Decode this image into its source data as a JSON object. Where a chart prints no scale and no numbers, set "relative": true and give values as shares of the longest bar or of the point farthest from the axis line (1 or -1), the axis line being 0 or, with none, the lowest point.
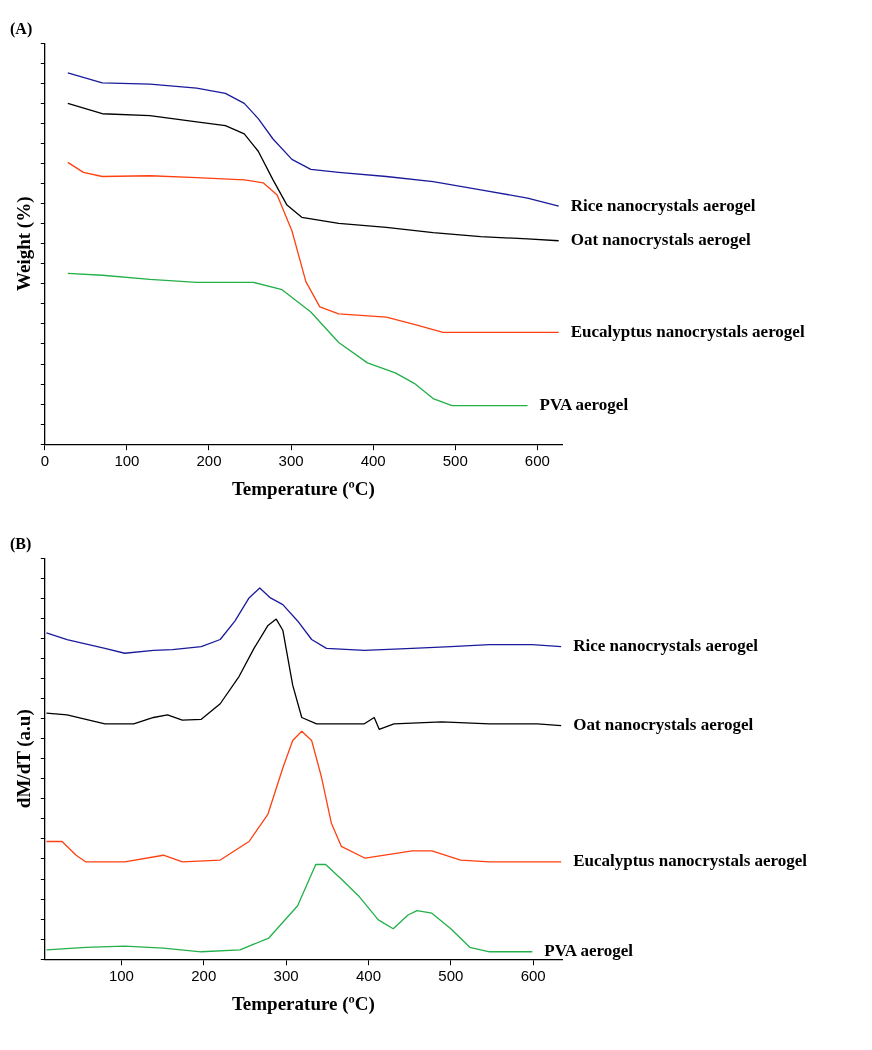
{
  "chart_data": [
    {
      "type": "line",
      "title": "(A)",
      "xlabel": "Temperature (ºC)",
      "ylabel": "Weight (%)",
      "relative": true,
      "xlim": [
        0,
        630
      ],
      "xticks": [
        0,
        100,
        200,
        300,
        400,
        500,
        600
      ],
      "tick_labels": "x",
      "grid": false,
      "legend": false,
      "marker": "none",
      "line_style": "solid",
      "series": [
        {
          "name": "Rice nanocrystals aerogel",
          "color": "#1a1a9c",
          "x": [
            28,
            70,
            128,
            185,
            220,
            243,
            260,
            278,
            301,
            324,
            358,
            416,
            473,
            531,
            588,
            626
          ],
          "values": [
            1.0,
            0.973,
            0.97,
            0.959,
            0.945,
            0.918,
            0.877,
            0.822,
            0.767,
            0.74,
            0.732,
            0.721,
            0.707,
            0.685,
            0.663,
            0.641
          ]
        },
        {
          "name": "Oat nanocrystals aerogel",
          "color": "#000000",
          "x": [
            28,
            70,
            128,
            185,
            220,
            243,
            260,
            278,
            295,
            313,
            358,
            416,
            473,
            531,
            588,
            626
          ],
          "values": [
            0.918,
            0.89,
            0.885,
            0.868,
            0.858,
            0.836,
            0.789,
            0.712,
            0.644,
            0.611,
            0.595,
            0.584,
            0.57,
            0.559,
            0.553,
            0.548
          ]
        },
        {
          "name": "Eucalyptus nanocrystals aerogel",
          "color": "#ff4010",
          "x": [
            28,
            47,
            70,
            128,
            185,
            243,
            266,
            283,
            301,
            318,
            335,
            358,
            416,
            450,
            485,
            531,
            626
          ],
          "values": [
            0.759,
            0.732,
            0.721,
            0.723,
            0.718,
            0.712,
            0.704,
            0.671,
            0.575,
            0.438,
            0.37,
            0.351,
            0.342,
            0.323,
            0.301,
            0.301,
            0.301
          ]
        },
        {
          "name": "PVA aerogel",
          "color": "#22b04a",
          "x": [
            28,
            70,
            128,
            185,
            254,
            289,
            324,
            358,
            393,
            427,
            450,
            473,
            496,
            531,
            588
          ],
          "values": [
            0.46,
            0.455,
            0.444,
            0.436,
            0.436,
            0.416,
            0.356,
            0.274,
            0.219,
            0.192,
            0.164,
            0.123,
            0.104,
            0.104,
            0.104
          ]
        }
      ]
    },
    {
      "type": "line",
      "title": "(B)",
      "xlabel": "Temperature (ºC)",
      "ylabel": "dM/dT (a.u)",
      "relative": true,
      "xlim": [
        7,
        635
      ],
      "xticks": [
        100,
        200,
        300,
        400,
        500,
        600
      ],
      "tick_labels": "x",
      "grid": false,
      "legend": false,
      "marker": "none",
      "line_style": "solid",
      "series": [
        {
          "name": "Rice nanocrystals aerogel",
          "color": "#1a1a9c",
          "x": [
            9,
            34,
            80,
            104,
            139,
            162,
            197,
            220,
            238,
            255,
            268,
            281,
            296,
            314,
            331,
            349,
            395,
            453,
            500,
            547,
            599,
            634
          ],
          "values": [
            0.879,
            0.861,
            0.837,
            0.824,
            0.832,
            0.834,
            0.842,
            0.861,
            0.911,
            0.973,
            1.0,
            0.973,
            0.955,
            0.911,
            0.861,
            0.837,
            0.832,
            0.837,
            0.842,
            0.847,
            0.847,
            0.842
          ]
        },
        {
          "name": "Oat nanocrystals aerogel",
          "color": "#000000",
          "x": [
            9,
            34,
            80,
            115,
            139,
            156,
            174,
            197,
            220,
            243,
            261,
            278,
            288,
            296,
            308,
            319,
            337,
            395,
            407,
            413,
            431,
            489,
            547,
            605,
            634
          ],
          "values": [
            0.663,
            0.658,
            0.634,
            0.634,
            0.651,
            0.658,
            0.644,
            0.646,
            0.688,
            0.762,
            0.837,
            0.899,
            0.916,
            0.886,
            0.738,
            0.651,
            0.634,
            0.634,
            0.651,
            0.619,
            0.634,
            0.639,
            0.634,
            0.634,
            0.629
          ]
        },
        {
          "name": "Eucalyptus nanocrystals aerogel",
          "color": "#ff4010",
          "x": [
            9,
            28,
            45,
            57,
            104,
            151,
            174,
            220,
            255,
            278,
            296,
            308,
            319,
            331,
            343,
            355,
            367,
            396,
            453,
            477,
            512,
            547,
            634
          ],
          "values": [
            0.317,
            0.317,
            0.28,
            0.262,
            0.262,
            0.28,
            0.262,
            0.267,
            0.317,
            0.391,
            0.515,
            0.589,
            0.614,
            0.589,
            0.49,
            0.366,
            0.304,
            0.272,
            0.292,
            0.292,
            0.267,
            0.262,
            0.262
          ]
        },
        {
          "name": "PVA aerogel",
          "color": "#22b04a",
          "x": [
            9,
            57,
            104,
            151,
            197,
            244,
            279,
            314,
            336,
            348,
            366,
            389,
            412,
            430,
            448,
            459,
            477,
            500,
            523,
            547,
            599
          ],
          "values": [
            0.025,
            0.032,
            0.035,
            0.03,
            0.02,
            0.025,
            0.057,
            0.144,
            0.255,
            0.255,
            0.218,
            0.168,
            0.106,
            0.082,
            0.119,
            0.131,
            0.124,
            0.082,
            0.032,
            0.02,
            0.02
          ]
        }
      ]
    }
  ]
}
